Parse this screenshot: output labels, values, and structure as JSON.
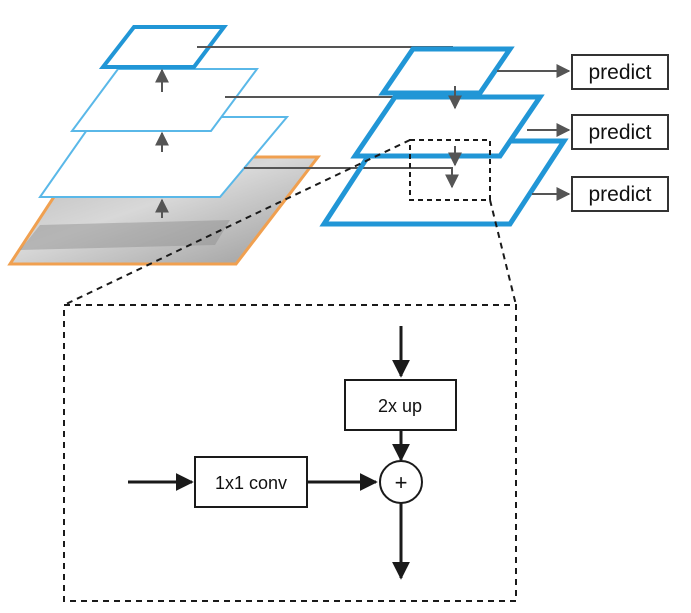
{
  "colors": {
    "bottom_up_stroke": "#5ab8e8",
    "top_down_stroke": "#2196d6",
    "image_stroke": "#f0a050",
    "arrow": "#555555",
    "dark": "#1a1a1a"
  },
  "predict_boxes": [
    {
      "label": "predict"
    },
    {
      "label": "predict"
    },
    {
      "label": "predict"
    }
  ],
  "detail": {
    "upsample_label": "2x up",
    "lateral_label": "1x1 conv",
    "merge_symbol": "+"
  }
}
